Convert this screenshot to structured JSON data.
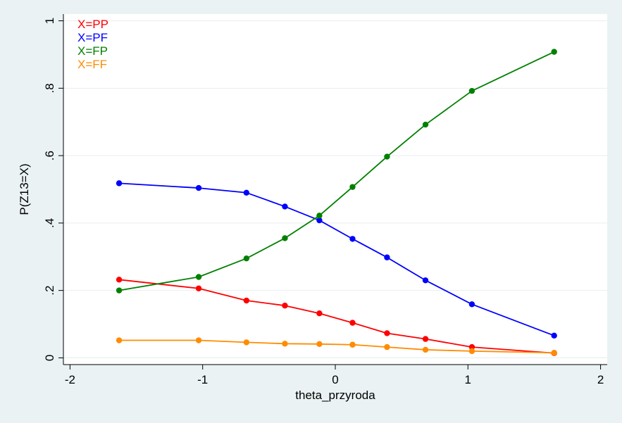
{
  "chart_data": {
    "type": "line",
    "title": "",
    "xlabel": "theta_przyroda",
    "ylabel": "P(Z13=X)",
    "xlim": [
      -2.05,
      2.05
    ],
    "ylim": [
      -0.02,
      1.02
    ],
    "x_ticks": [
      -2,
      -1,
      0,
      1,
      2
    ],
    "x_tick_labels": [
      "-2",
      "-1",
      "0",
      "1",
      "2"
    ],
    "y_ticks": [
      0,
      0.2,
      0.4,
      0.6,
      0.8,
      1
    ],
    "y_tick_labels": [
      "0",
      ".2",
      ".4",
      ".6",
      ".8",
      "1"
    ],
    "grid": "horizontal",
    "legend_position": "top-left",
    "x": [
      -1.63,
      -1.03,
      -0.67,
      -0.38,
      -0.12,
      0.13,
      0.39,
      0.68,
      1.03,
      1.65
    ],
    "series": [
      {
        "name": "X=PP",
        "color": "#ff0000",
        "values": [
          0.232,
          0.206,
          0.17,
          0.155,
          0.132,
          0.104,
          0.073,
          0.056,
          0.032,
          0.014
        ]
      },
      {
        "name": "X=PF",
        "color": "#0000ff",
        "values": [
          0.518,
          0.504,
          0.49,
          0.449,
          0.408,
          0.353,
          0.298,
          0.23,
          0.159,
          0.066
        ]
      },
      {
        "name": "X=FP",
        "color": "#008000",
        "values": [
          0.2,
          0.24,
          0.295,
          0.355,
          0.422,
          0.507,
          0.597,
          0.692,
          0.792,
          0.908
        ]
      },
      {
        "name": "X=FF",
        "color": "#ff8c00",
        "values": [
          0.052,
          0.052,
          0.046,
          0.042,
          0.041,
          0.039,
          0.032,
          0.024,
          0.02,
          0.015
        ]
      }
    ]
  },
  "colors": {
    "page_background": "#eaf2f3",
    "plot_background": "#ffffff",
    "gridline": "#e8eef0",
    "axis": "#000000"
  }
}
